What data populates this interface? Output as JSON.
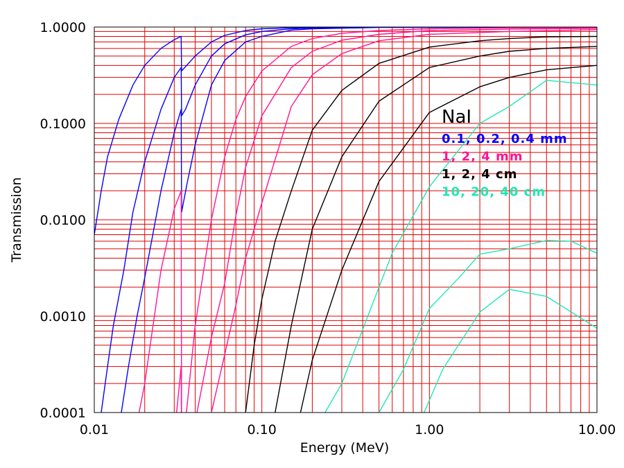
{
  "chart_data": {
    "type": "line",
    "title": "",
    "xlabel": "Energy (MeV)",
    "ylabel": "Transmission",
    "xscale": "log",
    "yscale": "log",
    "xlim": [
      0.01,
      10.0
    ],
    "ylim": [
      0.0001,
      1.0
    ],
    "x_ticks": [
      0.01,
      0.1,
      1.0,
      10.0
    ],
    "x_tick_labels": [
      "0.01",
      "0.10",
      "1.00",
      "10.00"
    ],
    "y_ticks": [
      0.0001,
      0.001,
      0.01,
      0.1,
      1.0
    ],
    "y_tick_labels": [
      "0.0001",
      "0.0010",
      "0.0100",
      "0.1000",
      "1.0000"
    ],
    "grid": true,
    "grid_color": "#e00000",
    "legend": {
      "title": "NaI",
      "placement": "right",
      "entries": [
        {
          "label": "0.1, 0.2, 0.4 mm",
          "color": "#0000ff"
        },
        {
          "label": "1, 2, 4 mm",
          "color": "#ff1493"
        },
        {
          "label": "1, 2, 4 cm",
          "color": "#000000"
        },
        {
          "label": "10, 20, 40 cm",
          "color": "#1ee8b4"
        }
      ]
    },
    "series": [
      {
        "color": "#0000ff",
        "points": [
          [
            0.01,
            0.007
          ],
          [
            0.011,
            0.02
          ],
          [
            0.012,
            0.045
          ],
          [
            0.014,
            0.11
          ],
          [
            0.017,
            0.25
          ],
          [
            0.02,
            0.4
          ],
          [
            0.025,
            0.6
          ],
          [
            0.03,
            0.74
          ],
          [
            0.033,
            0.8
          ],
          [
            0.0332,
            0.35
          ],
          [
            0.04,
            0.5
          ],
          [
            0.05,
            0.7
          ],
          [
            0.06,
            0.82
          ],
          [
            0.08,
            0.92
          ],
          [
            0.1,
            0.96
          ],
          [
            0.15,
            0.985
          ],
          [
            0.2,
            0.99
          ],
          [
            0.5,
            1.0
          ],
          [
            1.0,
            1.0
          ],
          [
            10.0,
            1.0
          ]
        ]
      },
      {
        "color": "#0000ff",
        "points": [
          [
            0.01,
            3e-05
          ],
          [
            0.011,
            0.0001
          ],
          [
            0.012,
            0.0003
          ],
          [
            0.013,
            0.0008
          ],
          [
            0.015,
            0.003
          ],
          [
            0.017,
            0.012
          ],
          [
            0.02,
            0.04
          ],
          [
            0.025,
            0.14
          ],
          [
            0.03,
            0.3
          ],
          [
            0.033,
            0.38
          ],
          [
            0.0332,
            0.12
          ],
          [
            0.035,
            0.14
          ],
          [
            0.04,
            0.25
          ],
          [
            0.05,
            0.5
          ],
          [
            0.06,
            0.67
          ],
          [
            0.08,
            0.83
          ],
          [
            0.1,
            0.9
          ],
          [
            0.15,
            0.96
          ],
          [
            0.2,
            0.98
          ],
          [
            0.5,
            0.995
          ],
          [
            10.0,
            1.0
          ]
        ]
      },
      {
        "color": "#0000ff",
        "points": [
          [
            0.0135,
            3e-05
          ],
          [
            0.0145,
            0.0001
          ],
          [
            0.016,
            0.0003
          ],
          [
            0.018,
            0.001
          ],
          [
            0.02,
            0.0025
          ],
          [
            0.025,
            0.02
          ],
          [
            0.03,
            0.08
          ],
          [
            0.033,
            0.14
          ],
          [
            0.0332,
            0.012
          ],
          [
            0.036,
            0.025
          ],
          [
            0.04,
            0.06
          ],
          [
            0.05,
            0.25
          ],
          [
            0.06,
            0.45
          ],
          [
            0.08,
            0.7
          ],
          [
            0.1,
            0.8
          ],
          [
            0.15,
            0.93
          ],
          [
            0.2,
            0.96
          ],
          [
            0.5,
            0.99
          ],
          [
            10.0,
            0.995
          ]
        ]
      },
      {
        "color": "#ff1493",
        "points": [
          [
            0.0175,
            3e-05
          ],
          [
            0.0185,
            0.0001
          ],
          [
            0.02,
            0.0002
          ],
          [
            0.025,
            0.003
          ],
          [
            0.03,
            0.013
          ],
          [
            0.033,
            0.02
          ],
          [
            0.0332,
            5e-05
          ],
          [
            0.035,
            8e-05
          ],
          [
            0.04,
            0.0008
          ],
          [
            0.05,
            0.01
          ],
          [
            0.06,
            0.045
          ],
          [
            0.07,
            0.11
          ],
          [
            0.08,
            0.19
          ],
          [
            0.1,
            0.35
          ],
          [
            0.15,
            0.63
          ],
          [
            0.2,
            0.76
          ],
          [
            0.3,
            0.86
          ],
          [
            0.5,
            0.92
          ],
          [
            1.0,
            0.96
          ],
          [
            3.0,
            0.98
          ],
          [
            10.0,
            0.985
          ]
        ]
      },
      {
        "color": "#ff1493",
        "points": [
          [
            0.0298,
            3e-05
          ],
          [
            0.031,
            0.0001
          ],
          [
            0.033,
            0.0003
          ],
          [
            0.0332,
            3e-05
          ],
          [
            0.038,
            3e-05
          ],
          [
            0.041,
            0.0001
          ],
          [
            0.05,
            0.0006
          ],
          [
            0.06,
            0.0022
          ],
          [
            0.07,
            0.011
          ],
          [
            0.08,
            0.035
          ],
          [
            0.1,
            0.12
          ],
          [
            0.15,
            0.38
          ],
          [
            0.2,
            0.56
          ],
          [
            0.3,
            0.73
          ],
          [
            0.5,
            0.84
          ],
          [
            1.0,
            0.92
          ],
          [
            3.0,
            0.95
          ],
          [
            10.0,
            0.97
          ]
        ]
      },
      {
        "color": "#ff1493",
        "points": [
          [
            0.046,
            3e-05
          ],
          [
            0.05,
            0.0001
          ],
          [
            0.06,
            0.0004
          ],
          [
            0.07,
            0.0013
          ],
          [
            0.08,
            0.004
          ],
          [
            0.09,
            0.008
          ],
          [
            0.1,
            0.015
          ],
          [
            0.15,
            0.15
          ],
          [
            0.2,
            0.32
          ],
          [
            0.3,
            0.53
          ],
          [
            0.5,
            0.72
          ],
          [
            1.0,
            0.84
          ],
          [
            3.0,
            0.9
          ],
          [
            10.0,
            0.94
          ]
        ]
      },
      {
        "color": "#000000",
        "points": [
          [
            0.0745,
            3e-05
          ],
          [
            0.08,
            0.0001
          ],
          [
            0.09,
            0.0005
          ],
          [
            0.1,
            0.0015
          ],
          [
            0.12,
            0.006
          ],
          [
            0.15,
            0.02
          ],
          [
            0.2,
            0.085
          ],
          [
            0.3,
            0.22
          ],
          [
            0.5,
            0.42
          ],
          [
            1.0,
            0.62
          ],
          [
            2.0,
            0.72
          ],
          [
            3.0,
            0.76
          ],
          [
            5.0,
            0.79
          ],
          [
            10.0,
            0.8
          ]
        ]
      },
      {
        "color": "#000000",
        "points": [
          [
            0.106,
            3e-05
          ],
          [
            0.12,
            0.0001
          ],
          [
            0.15,
            0.0008
          ],
          [
            0.2,
            0.008
          ],
          [
            0.3,
            0.045
          ],
          [
            0.5,
            0.17
          ],
          [
            1.0,
            0.38
          ],
          [
            2.0,
            0.5
          ],
          [
            3.0,
            0.56
          ],
          [
            5.0,
            0.6
          ],
          [
            10.0,
            0.63
          ]
        ]
      },
      {
        "color": "#000000",
        "points": [
          [
            0.145,
            3e-05
          ],
          [
            0.17,
            0.0001
          ],
          [
            0.2,
            0.00035
          ],
          [
            0.3,
            0.003
          ],
          [
            0.5,
            0.025
          ],
          [
            1.0,
            0.13
          ],
          [
            2.0,
            0.24
          ],
          [
            3.0,
            0.3
          ],
          [
            5.0,
            0.36
          ],
          [
            10.0,
            0.4
          ]
        ]
      },
      {
        "color": "#1ee8b4",
        "points": [
          [
            0.23,
            9e-05
          ],
          [
            0.3,
            0.0002
          ],
          [
            0.5,
            0.002
          ],
          [
            0.6,
            0.0045
          ],
          [
            1.0,
            0.022
          ],
          [
            2.0,
            0.1
          ],
          [
            3.0,
            0.15
          ],
          [
            5.0,
            0.28
          ],
          [
            10.0,
            0.25
          ]
        ]
      },
      {
        "color": "#1ee8b4",
        "points": [
          [
            0.38,
            9e-05
          ],
          [
            0.5,
            0.0001
          ],
          [
            0.7,
            0.00028
          ],
          [
            1.0,
            0.0012
          ],
          [
            1.5,
            0.0025
          ],
          [
            2.0,
            0.0044
          ],
          [
            3.0,
            0.005
          ],
          [
            5.0,
            0.0061
          ],
          [
            7.0,
            0.006
          ],
          [
            10.0,
            0.0045
          ]
        ]
      },
      {
        "color": "#1ee8b4",
        "points": [
          [
            0.83,
            3e-05
          ],
          [
            0.93,
            0.0001
          ],
          [
            1.2,
            0.00028
          ],
          [
            2.0,
            0.0011
          ],
          [
            3.0,
            0.0019
          ],
          [
            5.0,
            0.0016
          ],
          [
            10.0,
            0.00075
          ]
        ]
      }
    ]
  }
}
